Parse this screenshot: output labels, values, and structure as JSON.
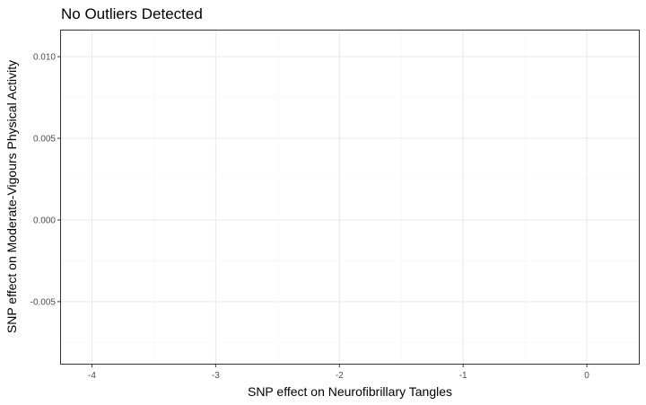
{
  "chart_data": {
    "type": "scatter",
    "title": "No Outliers Detected",
    "xlabel": "SNP effect on Neurofibrillary Tangles",
    "ylabel": "SNP effect on Moderate-Vigours Physical Activity",
    "xlim": [
      -4.25,
      0.42
    ],
    "ylim": [
      -0.0088,
      0.0116
    ],
    "x_ticks": [
      -4,
      -3,
      -2,
      -1,
      0
    ],
    "x_tick_labels": [
      "-4",
      "-3",
      "-2",
      "-1",
      "0"
    ],
    "y_ticks": [
      -0.005,
      0.0,
      0.005,
      0.01
    ],
    "y_tick_labels": [
      "-0.005",
      "0.000",
      "0.005",
      "0.010"
    ],
    "grid": true,
    "series": [],
    "colors": {
      "panel_border": "#333333",
      "grid_major": "#ebebeb",
      "grid_minor": "#f5f5f5",
      "tick_text": "#4d4d4d"
    }
  }
}
